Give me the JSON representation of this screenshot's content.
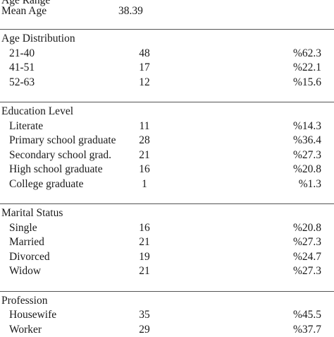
{
  "cut_top": {
    "label": "Age Range",
    "value": "",
    "pct": ""
  },
  "mean_age": {
    "label": "Mean  Age",
    "value": "38.39"
  },
  "sections": {
    "age": {
      "title": "Age Distribution",
      "rows": [
        {
          "label": "21-40",
          "value": "48",
          "pct": "%62.3"
        },
        {
          "label": "41-51",
          "value": "17",
          "pct": "%22.1"
        },
        {
          "label": "52-63",
          "value": "12",
          "pct": "%15.6"
        }
      ]
    },
    "education": {
      "title": "Education Level",
      "rows": [
        {
          "label": "Literate",
          "value": "11",
          "pct": "%14.3"
        },
        {
          "label": "Primary school graduate",
          "value": "28",
          "pct": "%36.4"
        },
        {
          "label": "Secondary school grad.",
          "value": "21",
          "pct": "%27.3"
        },
        {
          "label": "High school graduate",
          "value": "16",
          "pct": "%20.8"
        },
        {
          "label": "College graduate",
          "value": "1",
          "pct": "%1.3"
        }
      ]
    },
    "marital": {
      "title": "Marital Status",
      "rows": [
        {
          "label": "Single",
          "value": "16",
          "pct": "%20.8"
        },
        {
          "label": "Married",
          "value": "21",
          "pct": "%27.3"
        },
        {
          "label": "Divorced",
          "value": "19",
          "pct": "%24.7"
        },
        {
          "label": "Widow",
          "value": "21",
          "pct": "%27.3"
        }
      ]
    },
    "profession": {
      "title": "Profession",
      "rows": [
        {
          "label": "Housewife",
          "value": "35",
          "pct": "%45.5"
        },
        {
          "label": "Worker",
          "value": "29",
          "pct": "%37.7"
        }
      ]
    }
  }
}
